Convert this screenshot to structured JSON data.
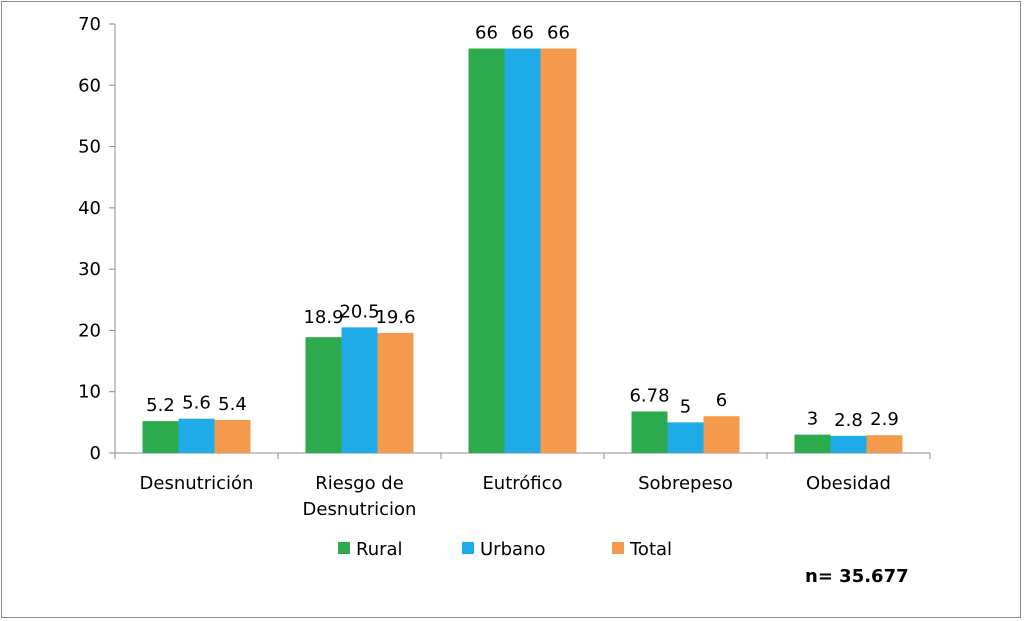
{
  "chart_data": {
    "type": "bar",
    "categories": [
      [
        "Desnutrición"
      ],
      [
        "Riesgo de",
        "Desnutricion"
      ],
      [
        "Eutrófico"
      ],
      [
        "Sobrepeso"
      ],
      [
        "Obesidad"
      ]
    ],
    "series": [
      {
        "name": "Rural",
        "color": "#2EAA4E",
        "values": [
          5.2,
          18.9,
          66,
          6.78,
          3
        ]
      },
      {
        "name": "Urbano",
        "color": "#1FAAE8",
        "values": [
          5.6,
          20.5,
          66,
          5,
          2.8
        ]
      },
      {
        "name": "Total",
        "color": "#F39A4C",
        "values": [
          5.4,
          19.6,
          66,
          6,
          2.9
        ]
      }
    ],
    "ylim": [
      0,
      70
    ],
    "yticks": [
      0,
      10,
      20,
      30,
      40,
      50,
      60,
      70
    ],
    "legend_position": "bottom",
    "grid": false,
    "note": "n= 35.677"
  }
}
